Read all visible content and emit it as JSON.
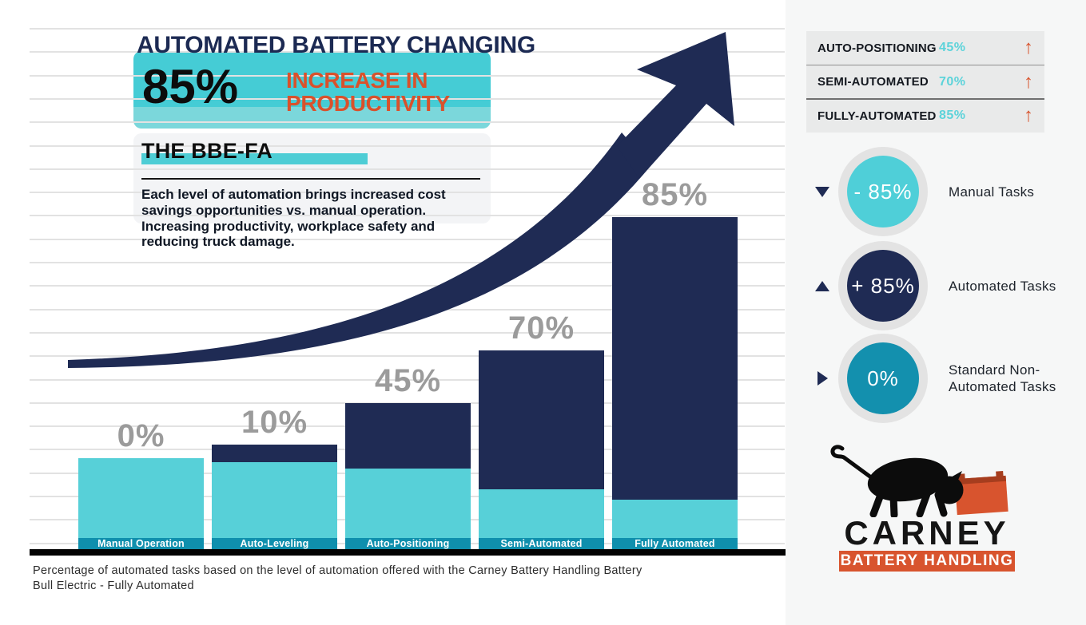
{
  "colors": {
    "navy": "#1f2b54",
    "cyan": "#57d0d8",
    "teal_band": "#0f8fad",
    "teal_box": "#45ccd5",
    "teal_box_light": "#7bd7db",
    "orange": "#d8542e",
    "gray_value_label": "#9b9b9b",
    "panel_bg": "#f6f7f7",
    "stats_bg": "#e9eaea",
    "gridline": "#e2e2e2"
  },
  "header": {
    "title": "AUTOMATED BATTERY CHANGING",
    "stat_value": "85%",
    "stat_label_line1": "INCREASE IN",
    "stat_label_line2": "PRODUCTIVITY",
    "product_name": "THE BBE-FA",
    "description": "Each level of automation brings increased cost savings opportunities vs. manual operation. Increasing productivity, workplace safety and reducing truck damage."
  },
  "chart_data": {
    "type": "bar",
    "title": "AUTOMATED BATTERY CHANGING",
    "categories": [
      "Manual Operation",
      "Auto-Leveling",
      "Auto-Positioning",
      "Semi-Automated",
      "Fully Automated"
    ],
    "values": [
      0,
      10,
      45,
      70,
      85
    ],
    "value_labels": [
      "0%",
      "10%",
      "45%",
      "70%",
      "85%"
    ],
    "stacking_note": "Each bar is stacked: navy top segment = automated share of tasks, cyan lower segment = remaining manual share; dark teal footer band carries the category label",
    "xlabel": "",
    "ylabel": "",
    "ylim": [
      0,
      100
    ],
    "grid": true,
    "annotations": [
      "large navy curved arrow sweeping up and to the right over the bars"
    ]
  },
  "stats_panel": {
    "arrow_char": "↑",
    "rows": [
      {
        "label": "AUTO-POSITIONING",
        "value": "45%"
      },
      {
        "label": "SEMI-AUTOMATED",
        "value": "70%"
      },
      {
        "label": "FULLY-AUTOMATED",
        "value": "85%"
      }
    ]
  },
  "task_circles": [
    {
      "value": "- 85%",
      "label": "Manual Tasks",
      "color": "#4fcfd8",
      "pointer": "down"
    },
    {
      "value": "+ 85%",
      "label": "Automated Tasks",
      "color": "#1f2b54",
      "pointer": "up"
    },
    {
      "value": "0%",
      "label": "Standard Non-Automated Tasks",
      "color": "#1390ae",
      "pointer": "right"
    }
  ],
  "logo": {
    "brand": "CARNEY",
    "tagline": "BATTERY HANDLING",
    "mark": "bull-pushing-battery"
  },
  "caption": {
    "line1": "Percentage of automated tasks based on the level of automation offered with the Carney Battery Handling Battery",
    "line2": "Bull Electric - Fully Automated"
  }
}
